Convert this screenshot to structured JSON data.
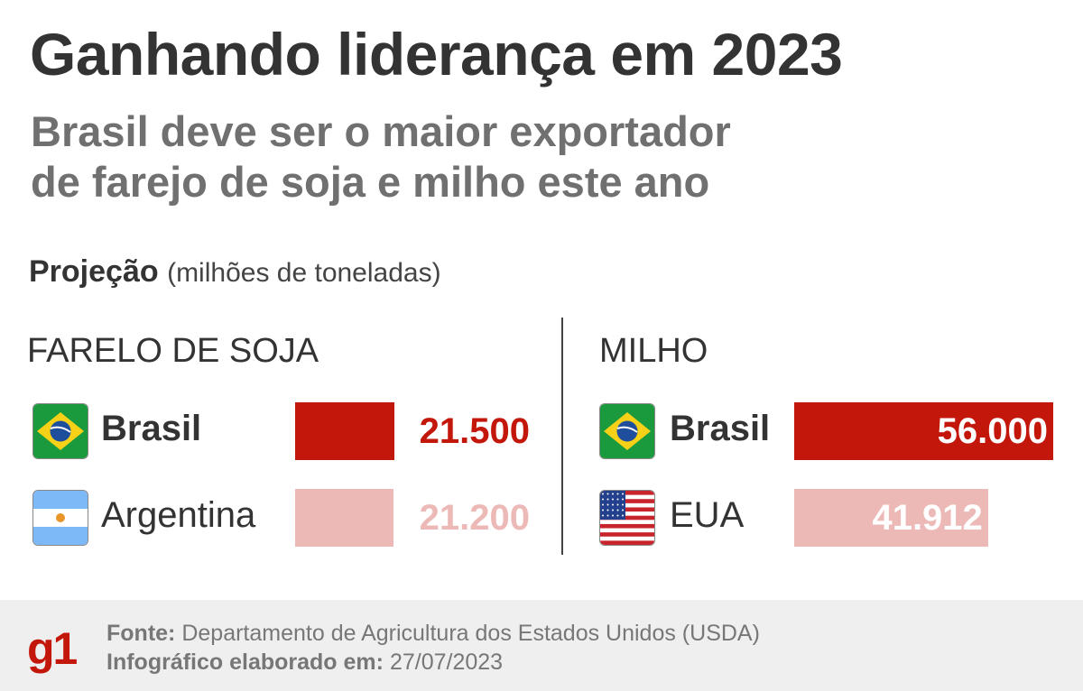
{
  "title": "Ganhando liderança em 2023",
  "subtitle_line1": "Brasil deve ser o maior exportador",
  "subtitle_line2": "de farejo de soja e milho este ano",
  "projection_label": "Projeção",
  "projection_unit": "(milhões de toneladas)",
  "colors": {
    "primary": "#c4170c",
    "secondary": "#ecb9b7",
    "text": "#333333"
  },
  "chart_data": [
    {
      "type": "bar",
      "title": "FARELO DE SOJA",
      "categories": [
        "Brasil",
        "Argentina"
      ],
      "values": [
        21.5,
        21.2
      ],
      "value_labels": [
        "21.500",
        "21.200"
      ],
      "flags": [
        "brazil-flag",
        "argentina-flag"
      ]
    },
    {
      "type": "bar",
      "title": "MILHO",
      "categories": [
        "Brasil",
        "EUA"
      ],
      "values": [
        56.0,
        41.912
      ],
      "value_labels": [
        "56.000",
        "41.912"
      ],
      "flags": [
        "brazil-flag",
        "usa-flag"
      ]
    }
  ],
  "footer": {
    "logo": "g1",
    "source_label": "Fonte:",
    "source_text": "Departamento de Agricultura dos Estados Unidos (USDA)",
    "date_label": "Infográfico elaborado em:",
    "date_text": "27/07/2023"
  }
}
